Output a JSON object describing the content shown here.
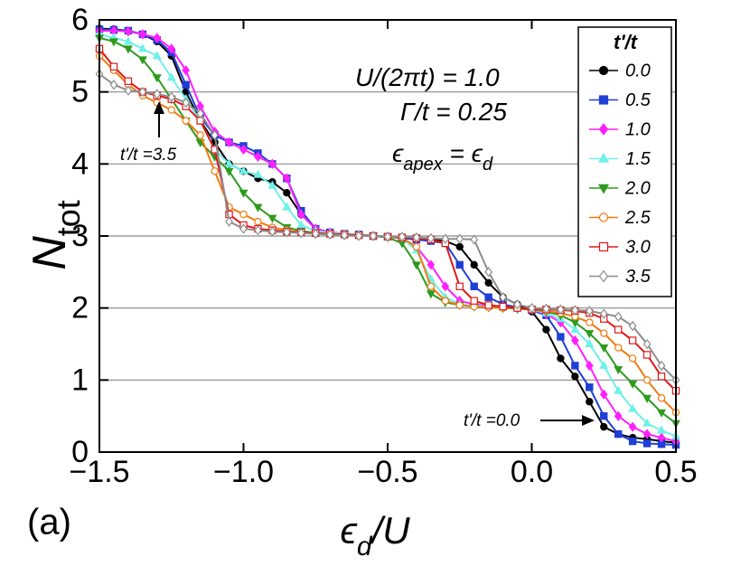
{
  "chart_data": {
    "type": "line",
    "xlabel": [
      "ϵ",
      "d",
      "/U"
    ],
    "ylabel": [
      "N",
      "tot"
    ],
    "panel_label": "(a)",
    "legend_title": "t'/t",
    "legend_position": "upper right",
    "annotations": [
      [
        "U/(2πt) = 1.0"
      ],
      [
        "Γ/t = 0.25"
      ],
      [
        "ϵ",
        "apex",
        " = ϵ",
        "d"
      ],
      [
        "t'/t =3.5"
      ],
      [
        "t'/t =0.0"
      ]
    ],
    "xlim": [
      -1.5,
      0.5
    ],
    "ylim": [
      0,
      6
    ],
    "xticks": [
      {
        "value": -1.5,
        "label": "−1.5"
      },
      {
        "value": -1.0,
        "label": "−1.0"
      },
      {
        "value": -0.5,
        "label": "−0.5"
      },
      {
        "value": 0.0,
        "label": "0.0"
      },
      {
        "value": 0.5,
        "label": "0.5"
      }
    ],
    "yticks": [
      0,
      1,
      2,
      3,
      4,
      5,
      6
    ],
    "grid": true,
    "x": [
      -1.5,
      -1.45,
      -1.4,
      -1.35,
      -1.3,
      -1.25,
      -1.2,
      -1.15,
      -1.1,
      -1.05,
      -1.0,
      -0.95,
      -0.9,
      -0.85,
      -0.8,
      -0.75,
      -0.7,
      -0.65,
      -0.6,
      -0.55,
      -0.5,
      -0.45,
      -0.4,
      -0.35,
      -0.3,
      -0.25,
      -0.2,
      -0.15,
      -0.1,
      -0.05,
      0.0,
      0.05,
      0.1,
      0.15,
      0.2,
      0.25,
      0.3,
      0.35,
      0.4,
      0.45,
      0.5
    ],
    "series": [
      {
        "name": "0.0",
        "color": "#000000",
        "marker": "circle",
        "filled": true,
        "values": [
          5.88,
          5.87,
          5.85,
          5.8,
          5.7,
          5.5,
          5.0,
          4.6,
          4.3,
          4.0,
          3.9,
          3.8,
          3.75,
          3.6,
          3.3,
          3.1,
          3.05,
          3.03,
          3.02,
          3.0,
          2.99,
          2.97,
          2.96,
          2.95,
          2.93,
          2.85,
          2.6,
          2.35,
          2.15,
          2.05,
          1.95,
          1.7,
          1.3,
          1.05,
          0.7,
          0.35,
          0.25,
          0.2,
          0.18,
          0.15,
          0.13
        ]
      },
      {
        "name": "0.5",
        "color": "#1f3fd6",
        "marker": "square",
        "filled": true,
        "values": [
          5.87,
          5.86,
          5.85,
          5.8,
          5.72,
          5.55,
          5.1,
          4.65,
          4.4,
          4.3,
          4.25,
          4.15,
          4.0,
          3.8,
          3.35,
          3.1,
          3.05,
          3.03,
          3.02,
          3.0,
          2.99,
          2.97,
          2.95,
          2.93,
          2.9,
          2.6,
          2.3,
          2.15,
          2.05,
          2.01,
          1.97,
          1.9,
          1.6,
          1.2,
          0.9,
          0.5,
          0.25,
          0.15,
          0.12,
          0.11,
          0.1
        ]
      },
      {
        "name": "1.0",
        "color": "#ff20ff",
        "marker": "diamond",
        "filled": true,
        "values": [
          5.85,
          5.85,
          5.84,
          5.8,
          5.75,
          5.6,
          5.3,
          4.8,
          4.45,
          4.3,
          4.2,
          4.1,
          4.0,
          3.8,
          3.3,
          3.1,
          3.05,
          3.03,
          3.02,
          3.0,
          2.99,
          2.97,
          2.85,
          2.6,
          2.3,
          2.1,
          2.05,
          2.03,
          2.02,
          2.0,
          1.98,
          1.92,
          1.8,
          1.55,
          1.2,
          0.8,
          0.5,
          0.35,
          0.25,
          0.2,
          0.15
        ]
      },
      {
        "name": "1.5",
        "color": "#6ff0e8",
        "marker": "triangle-up",
        "filled": true,
        "values": [
          5.8,
          5.75,
          5.7,
          5.6,
          5.5,
          5.2,
          4.9,
          4.6,
          4.2,
          4.0,
          3.9,
          3.85,
          3.7,
          3.4,
          3.15,
          3.07,
          3.04,
          3.03,
          3.02,
          3.0,
          2.99,
          2.97,
          2.8,
          2.4,
          2.15,
          2.05,
          2.03,
          2.02,
          2.01,
          2.0,
          1.98,
          1.93,
          1.85,
          1.7,
          1.5,
          1.2,
          0.85,
          0.6,
          0.4,
          0.3,
          0.22
        ]
      },
      {
        "name": "2.0",
        "color": "#2e9a1e",
        "marker": "triangle-down",
        "filled": true,
        "values": [
          5.75,
          5.7,
          5.6,
          5.45,
          5.2,
          4.9,
          4.6,
          4.3,
          4.1,
          3.9,
          3.6,
          3.4,
          3.25,
          3.12,
          3.07,
          3.04,
          3.03,
          3.02,
          3.01,
          3.0,
          2.98,
          2.9,
          2.6,
          2.2,
          2.08,
          2.04,
          2.02,
          2.01,
          2.0,
          1.99,
          1.98,
          1.95,
          1.9,
          1.8,
          1.65,
          1.45,
          1.15,
          0.95,
          0.75,
          0.55,
          0.4
        ]
      },
      {
        "name": "2.5",
        "color": "#f07a10",
        "marker": "circle",
        "filled": false,
        "values": [
          5.5,
          5.3,
          5.1,
          4.95,
          4.85,
          4.75,
          4.6,
          4.4,
          3.9,
          3.4,
          3.3,
          3.2,
          3.12,
          3.08,
          3.05,
          3.03,
          3.02,
          3.01,
          3.0,
          3.0,
          2.99,
          2.97,
          2.85,
          2.3,
          2.1,
          2.04,
          2.02,
          2.01,
          2.0,
          2.0,
          1.98,
          1.96,
          1.93,
          1.88,
          1.8,
          1.65,
          1.45,
          1.3,
          1.0,
          0.75,
          0.55
        ]
      },
      {
        "name": "3.0",
        "color": "#e01818",
        "marker": "square",
        "filled": false,
        "values": [
          5.6,
          5.35,
          5.15,
          5.0,
          4.95,
          4.9,
          4.8,
          4.6,
          4.2,
          3.3,
          3.15,
          3.1,
          3.08,
          3.06,
          3.05,
          3.04,
          3.03,
          3.02,
          3.01,
          3.0,
          2.99,
          2.98,
          2.97,
          2.95,
          2.9,
          2.3,
          2.1,
          2.04,
          2.02,
          2.0,
          1.98,
          1.98,
          1.97,
          1.96,
          1.93,
          1.85,
          1.7,
          1.55,
          1.35,
          1.05,
          0.85
        ]
      },
      {
        "name": "3.5",
        "color": "#8c8c8c",
        "marker": "diamond",
        "filled": false,
        "values": [
          5.25,
          5.1,
          5.02,
          5.0,
          4.97,
          4.93,
          4.85,
          4.7,
          4.4,
          3.2,
          3.1,
          3.08,
          3.06,
          3.05,
          3.04,
          3.03,
          3.02,
          3.01,
          3.0,
          3.0,
          2.99,
          2.99,
          2.98,
          2.97,
          2.96,
          2.96,
          2.95,
          2.5,
          2.15,
          2.05,
          2.0,
          1.99,
          1.98,
          1.97,
          1.96,
          1.92,
          1.88,
          1.75,
          1.5,
          1.2,
          1.0
        ]
      }
    ]
  }
}
